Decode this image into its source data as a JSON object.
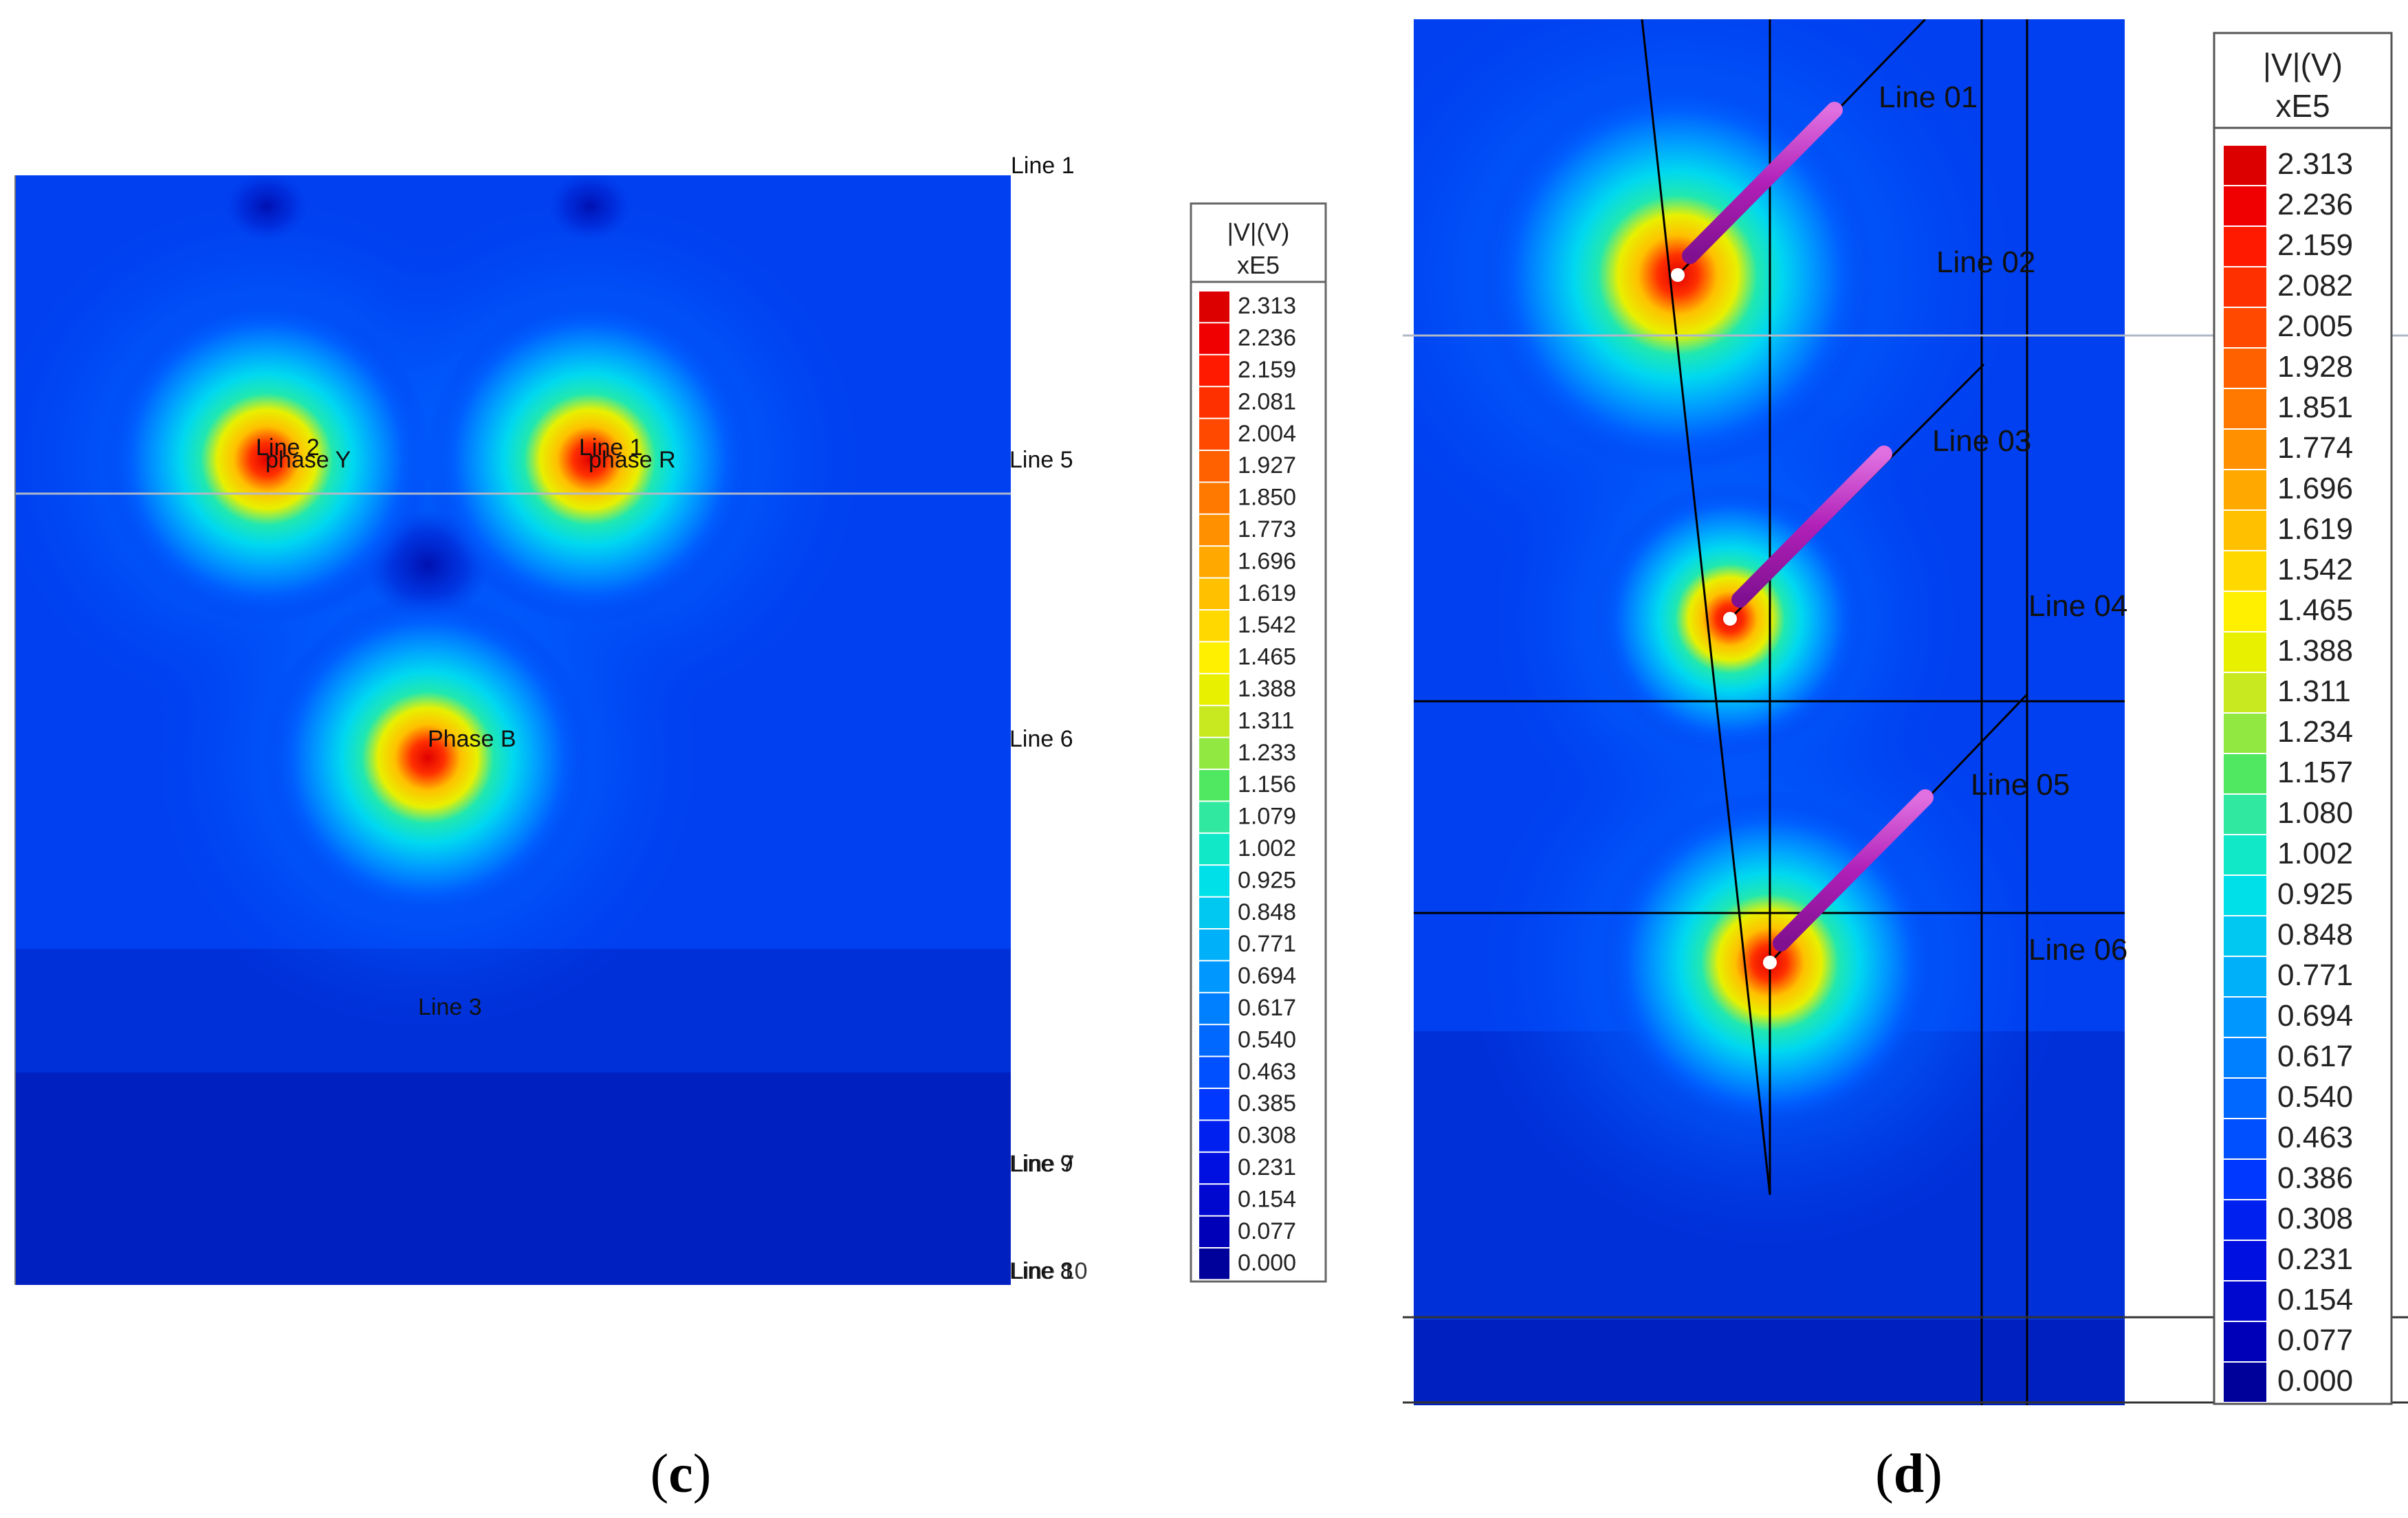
{
  "panel_c": {
    "caption_open": "(",
    "caption_letter": "c",
    "caption_close": ")",
    "labels": {
      "line1_tl": "Line 1",
      "line2": "Line 2",
      "phase_y": "phase Y",
      "line1": "Line 1",
      "phase_r": "phase R",
      "line5": "Line 5",
      "phase_b": "Phase B",
      "line6": "Line 6",
      "line3": "Line 3",
      "line9": "Line 9",
      "line7": "Line 7",
      "line8": "Line 8",
      "line10": "Line 10"
    },
    "legend": {
      "title": "|V|(V)",
      "scale": "xE5",
      "values": [
        "2.313",
        "2.236",
        "2.159",
        "2.081",
        "2.004",
        "1.927",
        "1.850",
        "1.773",
        "1.696",
        "1.619",
        "1.542",
        "1.465",
        "1.388",
        "1.311",
        "1.233",
        "1.156",
        "1.079",
        "1.002",
        "0.925",
        "0.848",
        "0.771",
        "0.694",
        "0.617",
        "0.540",
        "0.463",
        "0.385",
        "0.308",
        "0.231",
        "0.154",
        "0.077",
        "0.000"
      ],
      "colors": [
        "#dd0000",
        "#f00000",
        "#ff1a00",
        "#ff3000",
        "#ff4800",
        "#ff6000",
        "#ff7800",
        "#ff9000",
        "#ffa800",
        "#ffc000",
        "#ffd800",
        "#fff000",
        "#e8f000",
        "#c8e820",
        "#90e840",
        "#50e860",
        "#30e8a0",
        "#10e8c8",
        "#00e0e8",
        "#00c8f0",
        "#00b0f8",
        "#0098ff",
        "#0080ff",
        "#0068ff",
        "#0050ff",
        "#0038ff",
        "#0020f0",
        "#0010e0",
        "#0008d0",
        "#0000b8",
        "#00009a"
      ]
    }
  },
  "panel_d": {
    "caption_open": "(",
    "caption_letter": "d",
    "caption_close": ")",
    "labels": {
      "line01": "Line 01",
      "line02": "Line 02",
      "line03": "Line 03",
      "line04": "Line 04",
      "line05": "Line 05",
      "line06": "Line 06"
    },
    "legend": {
      "title": "|V|(V)",
      "scale": "xE5",
      "values": [
        "2.313",
        "2.236",
        "2.159",
        "2.082",
        "2.005",
        "1.928",
        "1.851",
        "1.774",
        "1.696",
        "1.619",
        "1.542",
        "1.465",
        "1.388",
        "1.311",
        "1.234",
        "1.157",
        "1.080",
        "1.002",
        "0.925",
        "0.848",
        "0.771",
        "0.694",
        "0.617",
        "0.540",
        "0.463",
        "0.386",
        "0.308",
        "0.231",
        "0.154",
        "0.077",
        "0.000"
      ],
      "colors": [
        "#dd0000",
        "#f00000",
        "#ff1a00",
        "#ff3000",
        "#ff4800",
        "#ff6000",
        "#ff7800",
        "#ff9000",
        "#ffa800",
        "#ffc000",
        "#ffd800",
        "#fff000",
        "#e8f000",
        "#c8e820",
        "#90e840",
        "#50e860",
        "#30e8a0",
        "#10e8c8",
        "#00e0e8",
        "#00c8f0",
        "#00b0f8",
        "#0098ff",
        "#0080ff",
        "#0068ff",
        "#0050ff",
        "#0038ff",
        "#0020f0",
        "#0010e0",
        "#0008d0",
        "#0000b8",
        "#00009a"
      ]
    }
  }
}
